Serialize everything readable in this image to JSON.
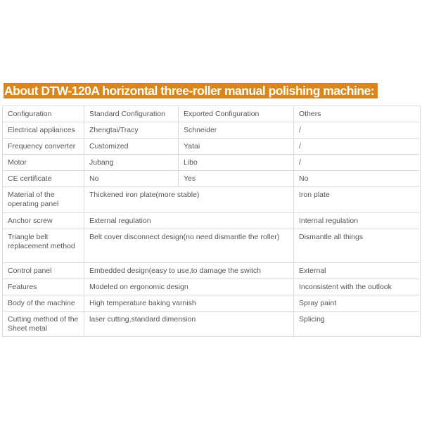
{
  "title": "About DTW-120A horizontal three-roller manual polishing machine:",
  "table": {
    "header": [
      "Configuration",
      "Standard Configuration",
      "Exported Configuration",
      "Others"
    ],
    "rows": [
      [
        "Electrical appliances",
        "Zhengtai/Tracy",
        "Schneider",
        "/"
      ],
      [
        "Frequency converter",
        "Customized",
        "Yatai",
        "/"
      ],
      [
        "Motor",
        "Jubang",
        "Libo",
        "/"
      ],
      [
        "CE certificate",
        "No",
        "Yes",
        "No"
      ]
    ],
    "merged_rows": [
      [
        "Material of the operating panel",
        "Thickened iron plate(more stable)",
        "Iron plate"
      ],
      [
        "Anchor screw",
        "External regulation",
        "Internal regulation"
      ],
      [
        "Triangle belt replacement method",
        "Belt cover disconnect design(no need dismantle the roller)",
        "Dismantle all things"
      ],
      [
        "Control panel",
        "Embedded design(easy to use,to damage the switch",
        "External"
      ],
      [
        "Features",
        "Modeled on ergonomic design",
        "Inconsistent with the outlook"
      ],
      [
        "Body of the machine",
        "High temperature baking varnish",
        "Spray paint"
      ],
      [
        "Cutting method of the Sheet metal",
        "laser cutting,standard dimension",
        "Splicing"
      ]
    ]
  }
}
